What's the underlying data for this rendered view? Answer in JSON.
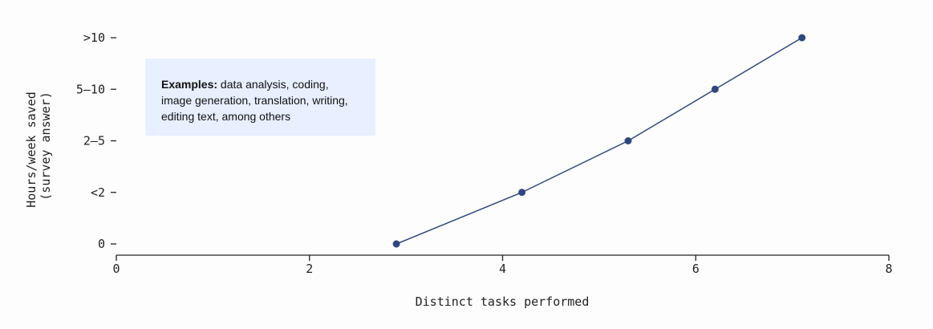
{
  "chart_data": {
    "type": "line",
    "title": "",
    "xlabel": "Distinct tasks performed",
    "ylabel_lines": [
      "Hours/week saved",
      "(survey answer)"
    ],
    "xlim": [
      0,
      8
    ],
    "x_ticks": [
      0,
      2,
      4,
      6,
      8
    ],
    "y_categories": [
      "0",
      "<2",
      "2–5",
      "5–10",
      ">10"
    ],
    "series": [
      {
        "x": [
          2.9,
          4.2,
          5.3,
          6.2,
          7.1
        ],
        "y": [
          "0",
          "<2",
          "2–5",
          "5–10",
          ">10"
        ]
      }
    ],
    "grid": false,
    "colors": {
      "line": "#2f477f",
      "axis": "#222222",
      "annotation_bg": "#e8efff"
    },
    "annotation": {
      "bold": "Examples:",
      "text": " data analysis, coding, image generation, translation, writing, editing text, among others"
    }
  }
}
